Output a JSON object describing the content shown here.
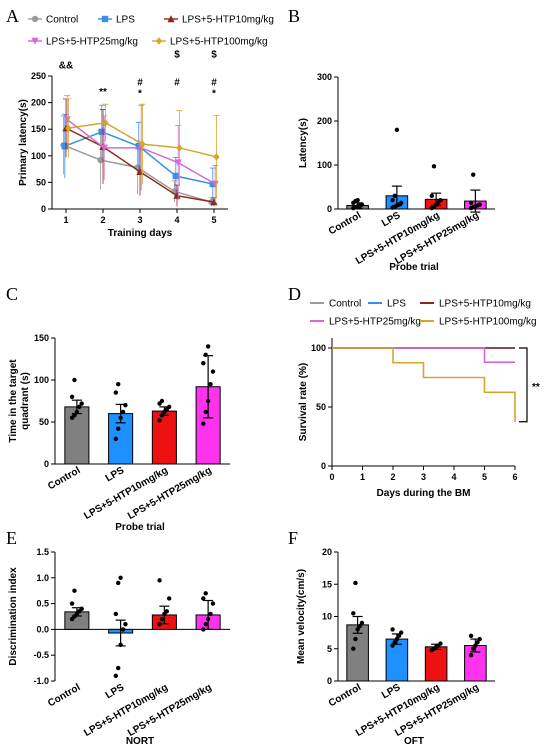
{
  "groups": {
    "control": {
      "label": "Control",
      "color": "#9b9b9b"
    },
    "lps": {
      "label": "LPS",
      "color": "#3a8fe6"
    },
    "lps_htp10": {
      "label": "LPS+5-HTP10mg/kg",
      "color": "#8b2a1a"
    },
    "lps_htp25": {
      "label": "LPS+5-HTP25mg/kg",
      "color": "#d56ad6"
    },
    "lps_htp100": {
      "label": "LPS+5-HTP100mg/kg",
      "color": "#d4a72c"
    }
  },
  "bar_colors": {
    "control": "#808080",
    "lps": "#1e90ff",
    "lps_htp10": "#ee1111",
    "lps_htp25": "#ff33ee"
  },
  "chart_data": [
    {
      "panel": "A",
      "type": "line",
      "xlabel": "Training days",
      "ylabel": "Primary latency(s)",
      "x": [
        1,
        2,
        3,
        4,
        5
      ],
      "ylim": [
        0,
        250
      ],
      "yticks": [
        0,
        50,
        100,
        150,
        200,
        250
      ],
      "series": [
        {
          "name": "Control",
          "group": "control",
          "marker": "circle",
          "values": [
            120,
            92,
            78,
            33,
            13
          ],
          "err": [
            55,
            55,
            50,
            20,
            8
          ]
        },
        {
          "name": "LPS",
          "group": "lps",
          "marker": "square",
          "values": [
            118,
            145,
            118,
            62,
            47
          ],
          "err": [
            60,
            50,
            45,
            35,
            30
          ]
        },
        {
          "name": "LPS+5-HTP10mg/kg",
          "group": "lps_htp10",
          "marker": "triangle",
          "values": [
            152,
            117,
            70,
            25,
            13
          ],
          "err": [
            55,
            70,
            45,
            20,
            8
          ]
        },
        {
          "name": "LPS+5-HTP25mg/kg",
          "group": "lps_htp25",
          "marker": "triangle-down",
          "values": [
            168,
            115,
            115,
            87,
            47
          ],
          "err": [
            45,
            60,
            80,
            70,
            35
          ]
        },
        {
          "name": "LPS+5-HTP100mg/kg",
          "group": "lps_htp100",
          "marker": "diamond",
          "values": [
            152,
            162,
            122,
            115,
            98
          ],
          "err": [
            55,
            35,
            75,
            70,
            78
          ]
        }
      ],
      "annotations": [
        {
          "x": 1,
          "y": 270,
          "text": "&&"
        },
        {
          "x": 2,
          "y": 220,
          "text": "**"
        },
        {
          "x": 3,
          "y": 238,
          "text": "#"
        },
        {
          "x": 3,
          "y": 217,
          "text": "*"
        },
        {
          "x": 4,
          "y": 290,
          "text": "$"
        },
        {
          "x": 4,
          "y": 238,
          "text": "#"
        },
        {
          "x": 5,
          "y": 290,
          "text": "$"
        },
        {
          "x": 5,
          "y": 238,
          "text": "#"
        },
        {
          "x": 5,
          "y": 217,
          "text": "*"
        }
      ]
    },
    {
      "panel": "B",
      "type": "bar",
      "xlabel": "Probe trial",
      "ylabel": "Latency(s)",
      "ylim": [
        0,
        300
      ],
      "yticks": [
        0,
        100,
        200,
        300
      ],
      "categories": [
        "Control",
        "LPS",
        "LPS+5-HTP10mg/kg",
        "LPS+5-HTP25mg/kg"
      ],
      "groups": [
        "control",
        "lps",
        "lps_htp10",
        "lps_htp25"
      ],
      "values": [
        8,
        30,
        22,
        18
      ],
      "err": [
        6,
        22,
        14,
        25
      ],
      "points": [
        [
          2,
          4,
          6,
          8,
          10,
          14,
          18,
          20
        ],
        [
          3,
          5,
          8,
          10,
          14,
          20,
          30,
          180
        ],
        [
          2,
          5,
          10,
          15,
          20,
          30,
          97
        ],
        [
          2,
          4,
          6,
          8,
          10,
          14,
          78
        ]
      ]
    },
    {
      "panel": "C",
      "type": "bar",
      "xlabel": "Probe trial",
      "ylabel": "Time in the target quadrant (s)",
      "ylim": [
        0,
        150
      ],
      "yticks": [
        0,
        50,
        100,
        150
      ],
      "categories": [
        "Control",
        "LPS",
        "LPS+5-HTP10mg/kg",
        "LPS+5-HTP25mg/kg"
      ],
      "groups": [
        "control",
        "lps",
        "lps_htp10",
        "lps_htp25"
      ],
      "values": [
        68,
        60,
        63,
        92
      ],
      "err": [
        8,
        11,
        5,
        37
      ],
      "points": [
        [
          55,
          58,
          62,
          68,
          72,
          80,
          100
        ],
        [
          30,
          42,
          55,
          62,
          70,
          85,
          95
        ],
        [
          52,
          58,
          62,
          65,
          68,
          72,
          75
        ],
        [
          48,
          62,
          75,
          95,
          110,
          120,
          130,
          140
        ]
      ]
    },
    {
      "panel": "D",
      "type": "line",
      "xlabel": "Days during the BM",
      "ylabel": "Survival rate (%)",
      "x": [
        0,
        1,
        2,
        3,
        4,
        5,
        6
      ],
      "ylim": [
        0,
        100
      ],
      "yticks": [
        0,
        50,
        100
      ],
      "series": [
        {
          "name": "Control",
          "group": "control",
          "steps": [
            [
              0,
              100
            ],
            [
              6,
              100
            ]
          ]
        },
        {
          "name": "LPS",
          "group": "lps",
          "steps": [
            [
              0,
              100
            ],
            [
              6,
              100
            ]
          ]
        },
        {
          "name": "LPS+5-HTP10mg/kg",
          "group": "lps_htp10",
          "steps": [
            [
              0,
              100
            ],
            [
              6,
              100
            ]
          ]
        },
        {
          "name": "LPS+5-HTP25mg/kg",
          "group": "lps_htp25",
          "steps": [
            [
              0,
              100
            ],
            [
              5,
              100
            ],
            [
              5,
              88
            ],
            [
              6,
              88
            ]
          ]
        },
        {
          "name": "LPS+5-HTP100mg/kg",
          "group": "lps_htp100",
          "steps": [
            [
              0,
              100
            ],
            [
              2,
              100
            ],
            [
              2,
              87.5
            ],
            [
              3,
              87.5
            ],
            [
              3,
              75
            ],
            [
              5,
              75
            ],
            [
              5,
              62.5
            ],
            [
              6,
              62.5
            ],
            [
              6,
              37.5
            ]
          ]
        }
      ],
      "annotations": [
        {
          "text": "**"
        }
      ]
    },
    {
      "panel": "E",
      "type": "bar",
      "xlabel": "NORT",
      "ylabel": "Discrimination index",
      "ylim": [
        -1.0,
        1.5
      ],
      "yticks": [
        -1.0,
        -0.5,
        0.0,
        0.5,
        1.0,
        1.5
      ],
      "categories": [
        "Control",
        "LPS",
        "LPS+5-HTP10mg/kg",
        "LPS+5-HTP25mg/kg"
      ],
      "groups": [
        "control",
        "lps",
        "lps_htp10",
        "lps_htp25"
      ],
      "values": [
        0.34,
        -0.07,
        0.28,
        0.28
      ],
      "err": [
        0.08,
        0.25,
        0.17,
        0.28
      ],
      "points": [
        [
          0.2,
          0.25,
          0.3,
          0.35,
          0.4,
          0.5,
          0.75
        ],
        [
          -0.9,
          -0.75,
          -0.3,
          0.0,
          0.1,
          0.3,
          0.9,
          1.0
        ],
        [
          0.1,
          0.2,
          0.3,
          0.35,
          0.6,
          0.95
        ],
        [
          0.0,
          0.1,
          0.2,
          0.3,
          0.5,
          0.6,
          0.7
        ]
      ]
    },
    {
      "panel": "F",
      "type": "bar",
      "xlabel": "OFT",
      "ylabel": "Mean velocity(cm/s)",
      "ylim": [
        0,
        20
      ],
      "yticks": [
        0,
        5,
        10,
        15,
        20
      ],
      "categories": [
        "Control",
        "LPS",
        "LPS+5-HTP10mg/kg",
        "LPS+5-HTP25mg/kg"
      ],
      "groups": [
        "control",
        "lps",
        "lps_htp10",
        "lps_htp25"
      ],
      "values": [
        8.7,
        6.5,
        5.3,
        5.5
      ],
      "err": [
        1.3,
        0.8,
        0.4,
        1.0
      ],
      "points": [
        [
          5.0,
          6.5,
          8.0,
          8.5,
          9.0,
          10.5,
          15.2
        ],
        [
          5.5,
          6.0,
          6.5,
          7.0,
          7.5,
          8.0
        ],
        [
          4.8,
          5.0,
          5.3,
          5.5,
          5.8
        ],
        [
          4.0,
          5.0,
          5.5,
          6.0,
          6.5,
          7.0
        ]
      ]
    }
  ]
}
